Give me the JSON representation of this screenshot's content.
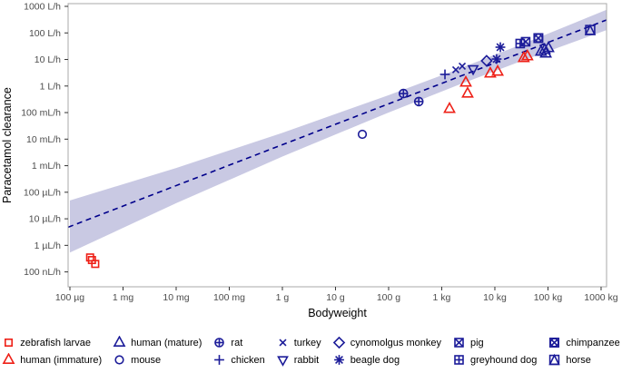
{
  "chart_data": {
    "type": "scatter",
    "title": "",
    "xlabel": "Bodyweight",
    "ylabel": "Paracetamol clearance",
    "x_scale": "log",
    "y_scale": "log",
    "x_unit": "grams",
    "y_unit": "L/h",
    "x_domain_log10_g": [
      -4.034,
      6.103
    ],
    "y_domain_log10_Lh": [
      -7.56,
      3.103
    ],
    "x_ticks": [
      {
        "label": "100 µg",
        "log10_g": -4
      },
      {
        "label": "1 mg",
        "log10_g": -3
      },
      {
        "label": "10 mg",
        "log10_g": -2
      },
      {
        "label": "100 mg",
        "log10_g": -1
      },
      {
        "label": "1 g",
        "log10_g": 0
      },
      {
        "label": "10 g",
        "log10_g": 1
      },
      {
        "label": "100 g",
        "log10_g": 2
      },
      {
        "label": "1 kg",
        "log10_g": 3
      },
      {
        "label": "10 kg",
        "log10_g": 4
      },
      {
        "label": "100 kg",
        "log10_g": 5
      },
      {
        "label": "1000 kg",
        "log10_g": 6
      }
    ],
    "y_ticks": [
      {
        "label": "1000 L/h",
        "log10_Lh": 3
      },
      {
        "label": "100 L/h",
        "log10_Lh": 2
      },
      {
        "label": "10 L/h",
        "log10_Lh": 1
      },
      {
        "label": "1 L/h",
        "log10_Lh": 0
      },
      {
        "label": "100 mL/h",
        "log10_Lh": -1
      },
      {
        "label": "10 mL/h",
        "log10_Lh": -2
      },
      {
        "label": "1 mL/h",
        "log10_Lh": -3
      },
      {
        "label": "100 µL/h",
        "log10_Lh": -4
      },
      {
        "label": "10 µL/h",
        "log10_Lh": -5
      },
      {
        "label": "1 µL/h",
        "log10_Lh": -6
      },
      {
        "label": "100 nL/h",
        "log10_Lh": -7
      }
    ],
    "regression_line": {
      "style": "dashed",
      "color": "#00008b",
      "allometric_exponent": 0.77,
      "intercept_log10_Lh_at_1g": -2.21
    },
    "confidence_band": {
      "color": "#c9c9e3",
      "logW_stations": [
        -4.0,
        -2,
        0,
        2,
        3.3,
        4.5,
        6.103
      ],
      "half_width_decades": [
        0.98,
        0.663,
        0.447,
        0.327,
        0.3,
        0.312,
        0.381
      ]
    },
    "colors": {
      "cold_blooded_red": "#ee2017",
      "warm_navy": "#1c1c99"
    },
    "series": [
      {
        "name": "zebrafish larvae",
        "symbol": "square",
        "color": "#ee2017",
        "points": [
          {
            "w_g": 0.00026,
            "cl_L_per_h": 2.8e-07
          },
          {
            "w_g": 0.00024,
            "cl_L_per_h": 3.5e-07
          },
          {
            "w_g": 0.0003,
            "cl_L_per_h": 2e-07
          }
        ]
      },
      {
        "name": "human (immature)",
        "symbol": "triangle",
        "color": "#ee2017",
        "points": [
          {
            "w_g": 1400,
            "cl_L_per_h": 0.138
          },
          {
            "w_g": 2840,
            "cl_L_per_h": 1.35
          },
          {
            "w_g": 3070,
            "cl_L_per_h": 0.52
          },
          {
            "w_g": 8200,
            "cl_L_per_h": 2.96
          },
          {
            "w_g": 11300,
            "cl_L_per_h": 3.47
          },
          {
            "w_g": 35000,
            "cl_L_per_h": 11.3
          },
          {
            "w_g": 41000,
            "cl_L_per_h": 13.2
          }
        ]
      },
      {
        "name": "human (mature)",
        "symbol": "triangle",
        "color": "#1c1c99",
        "points": [
          {
            "w_g": 74000,
            "cl_L_per_h": 19.6
          },
          {
            "w_g": 87000,
            "cl_L_per_h": 22.9
          },
          {
            "w_g": 102000,
            "cl_L_per_h": 26.8
          },
          {
            "w_g": 91000,
            "cl_L_per_h": 16.7
          }
        ]
      },
      {
        "name": "mouse",
        "symbol": "circle",
        "color": "#1c1c99",
        "points": [
          {
            "w_g": 32,
            "cl_L_per_h": 0.0152
          }
        ]
      },
      {
        "name": "rat",
        "symbol": "circle-plus",
        "color": "#1c1c99",
        "points": [
          {
            "w_g": 190,
            "cl_L_per_h": 0.52
          },
          {
            "w_g": 370,
            "cl_L_per_h": 0.26
          }
        ]
      },
      {
        "name": "chicken",
        "symbol": "plus",
        "color": "#1c1c99",
        "points": [
          {
            "w_g": 1150,
            "cl_L_per_h": 2.74
          }
        ]
      },
      {
        "name": "turkey",
        "symbol": "x",
        "color": "#1c1c99",
        "points": [
          {
            "w_g": 1840,
            "cl_L_per_h": 4.1
          },
          {
            "w_g": 2430,
            "cl_L_per_h": 5.6
          }
        ]
      },
      {
        "name": "rabbit",
        "symbol": "triangle-down",
        "color": "#1c1c99",
        "points": [
          {
            "w_g": 3900,
            "cl_L_per_h": 4.4
          }
        ]
      },
      {
        "name": "cynomolgus monkey",
        "symbol": "diamond",
        "color": "#1c1c99",
        "points": [
          {
            "w_g": 7000,
            "cl_L_per_h": 8.9
          }
        ]
      },
      {
        "name": "beagle dog",
        "symbol": "asterisk",
        "color": "#1c1c99",
        "points": [
          {
            "w_g": 12700,
            "cl_L_per_h": 29
          },
          {
            "w_g": 10800,
            "cl_L_per_h": 10.4
          }
        ]
      },
      {
        "name": "pig",
        "symbol": "square-x",
        "color": "#1c1c99",
        "points": [
          {
            "w_g": 38000,
            "cl_L_per_h": 46.6
          }
        ]
      },
      {
        "name": "greyhound dog",
        "symbol": "square-plus",
        "color": "#1c1c99",
        "points": [
          {
            "w_g": 30000,
            "cl_L_per_h": 39.8
          }
        ]
      },
      {
        "name": "chimpanzee",
        "symbol": "square-circle-x",
        "color": "#1c1c99",
        "points": [
          {
            "w_g": 66000,
            "cl_L_per_h": 63.8
          }
        ]
      },
      {
        "name": "horse",
        "symbol": "square-triangle",
        "color": "#1c1c99",
        "points": [
          {
            "w_g": 624000,
            "cl_L_per_h": 129
          }
        ]
      }
    ],
    "legend_columns": [
      [
        0,
        1
      ],
      [
        2,
        3
      ],
      [
        4,
        5
      ],
      [
        6,
        7
      ],
      [
        8,
        9
      ],
      [
        10,
        11
      ],
      [
        12,
        13
      ]
    ],
    "grid": "off",
    "legend_position": "bottom"
  }
}
